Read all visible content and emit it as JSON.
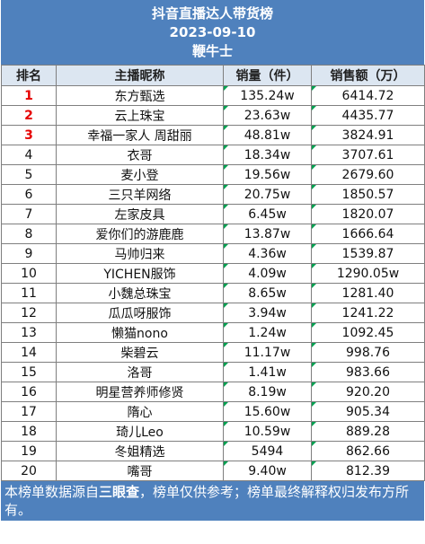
{
  "header": {
    "title": "抖音直播达人带货榜",
    "date": "2023-09-10",
    "subtitle": "鞭牛士"
  },
  "columns": [
    "排名",
    "主播昵称",
    "销量（件）",
    "销售额（万）"
  ],
  "rows": [
    {
      "rank": "1",
      "name": "东方甄选",
      "sales": "135.24w",
      "revenue": "6414.72"
    },
    {
      "rank": "2",
      "name": "云上珠宝",
      "sales": "23.63w",
      "revenue": "4435.77"
    },
    {
      "rank": "3",
      "name": "幸福一家人 周甜丽",
      "sales": "48.81w",
      "revenue": "3824.91"
    },
    {
      "rank": "4",
      "name": "衣哥",
      "sales": "18.34w",
      "revenue": "3707.61"
    },
    {
      "rank": "5",
      "name": "麦小登",
      "sales": "19.56w",
      "revenue": "2679.60"
    },
    {
      "rank": "6",
      "name": "三只羊网络",
      "sales": "20.75w",
      "revenue": "1850.57"
    },
    {
      "rank": "7",
      "name": "左家皮具",
      "sales": "6.45w",
      "revenue": "1820.07"
    },
    {
      "rank": "8",
      "name": "爱你们的游鹿鹿",
      "sales": "13.87w",
      "revenue": "1666.64"
    },
    {
      "rank": "9",
      "name": "马帅归来",
      "sales": "4.36w",
      "revenue": "1539.87"
    },
    {
      "rank": "10",
      "name": "YICHEN服饰",
      "sales": "4.09w",
      "revenue": "1290.05w"
    },
    {
      "rank": "11",
      "name": "小魏总珠宝",
      "sales": "8.65w",
      "revenue": "1281.40"
    },
    {
      "rank": "12",
      "name": "瓜瓜呀服饰",
      "sales": "3.94w",
      "revenue": "1241.22"
    },
    {
      "rank": "13",
      "name": "懒猫nono",
      "sales": "1.24w",
      "revenue": "1092.45"
    },
    {
      "rank": "14",
      "name": "柴碧云",
      "sales": "11.17w",
      "revenue": "998.76"
    },
    {
      "rank": "15",
      "name": "洛哥",
      "sales": "1.41w",
      "revenue": "983.66"
    },
    {
      "rank": "16",
      "name": "明星营养师修贤",
      "sales": "8.19w",
      "revenue": "920.20"
    },
    {
      "rank": "17",
      "name": "隋心",
      "sales": "15.60w",
      "revenue": "905.34"
    },
    {
      "rank": "18",
      "name": "琦儿Leo",
      "sales": "10.59w",
      "revenue": "889.28"
    },
    {
      "rank": "19",
      "name": "冬姐精选",
      "sales": "5494",
      "revenue": "862.66"
    },
    {
      "rank": "20",
      "name": "嘴哥",
      "sales": "9.40w",
      "revenue": "812.39"
    }
  ],
  "footer": {
    "before": "本榜单数据源自",
    "source": "三眼查",
    "after": "，榜单仅供参考；榜单最终解释权归发布方所有。"
  },
  "colors": {
    "header_bg": "#4f81bd",
    "column_header_bg": "#dce6f1",
    "top_rank": "#e60000",
    "cell_marker": "#00a050"
  }
}
